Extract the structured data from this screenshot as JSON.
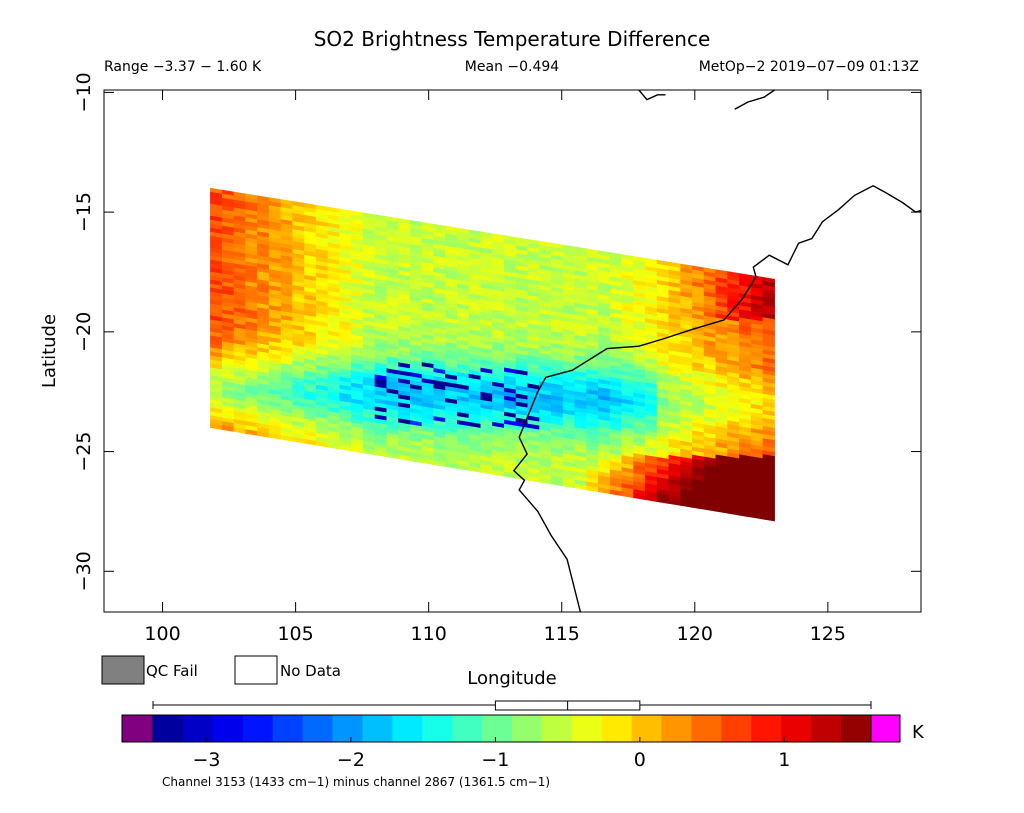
{
  "chart_data": {
    "type": "heatmap",
    "title": "SO2 Brightness Temperature Difference",
    "range_text": "Range −3.37 − 1.60 K",
    "mean_text": "Mean −0.494",
    "satellite_text": "MetOp−2 2019−07−09 01:13Z",
    "xlabel": "Longitude",
    "ylabel": "Latitude",
    "xlim": [
      97.8,
      128.5
    ],
    "ylim": [
      -31.7,
      -9.9
    ],
    "x_ticks": [
      {
        "value": 100,
        "label": "100"
      },
      {
        "value": 105,
        "label": "105"
      },
      {
        "value": 110,
        "label": "110"
      },
      {
        "value": 115,
        "label": "115"
      },
      {
        "value": 120,
        "label": "120"
      },
      {
        "value": 125,
        "label": "125"
      }
    ],
    "y_ticks": [
      {
        "value": -10,
        "label": "−10"
      },
      {
        "value": -15,
        "label": "−15"
      },
      {
        "value": -20,
        "label": "−20"
      },
      {
        "value": -25,
        "label": "−25"
      },
      {
        "value": -30,
        "label": "−30"
      }
    ],
    "swath_corners": [
      [
        101.8,
        -14.0
      ],
      [
        123.0,
        -17.8
      ],
      [
        123.0,
        -27.9
      ],
      [
        101.8,
        -24.0
      ]
    ],
    "range": {
      "min": -3.37,
      "max": 1.6,
      "mean": -0.494
    },
    "legend": [
      {
        "label": "QC Fail",
        "color": "#808080"
      },
      {
        "label": "No Data",
        "color": "#ffffff"
      }
    ],
    "colorbar": {
      "min": -3.37,
      "max": 1.6,
      "unit": "K",
      "ticks": [
        {
          "value": -3,
          "label": "−3"
        },
        {
          "value": -2,
          "label": "−2"
        },
        {
          "value": -1,
          "label": "−1"
        },
        {
          "value": 0,
          "label": "0"
        },
        {
          "value": 1,
          "label": "1"
        }
      ],
      "underflow_color": "#800080",
      "overflow_color": "#ff00ff",
      "boxplot": {
        "whisker_low": -3.37,
        "q1": -1.0,
        "median": -0.5,
        "q3": 0.0,
        "whisker_high": 1.6
      }
    },
    "footer": "Channel 3153 (1433 cm−1) minus channel 2867 (1361.5 cm−1)"
  }
}
